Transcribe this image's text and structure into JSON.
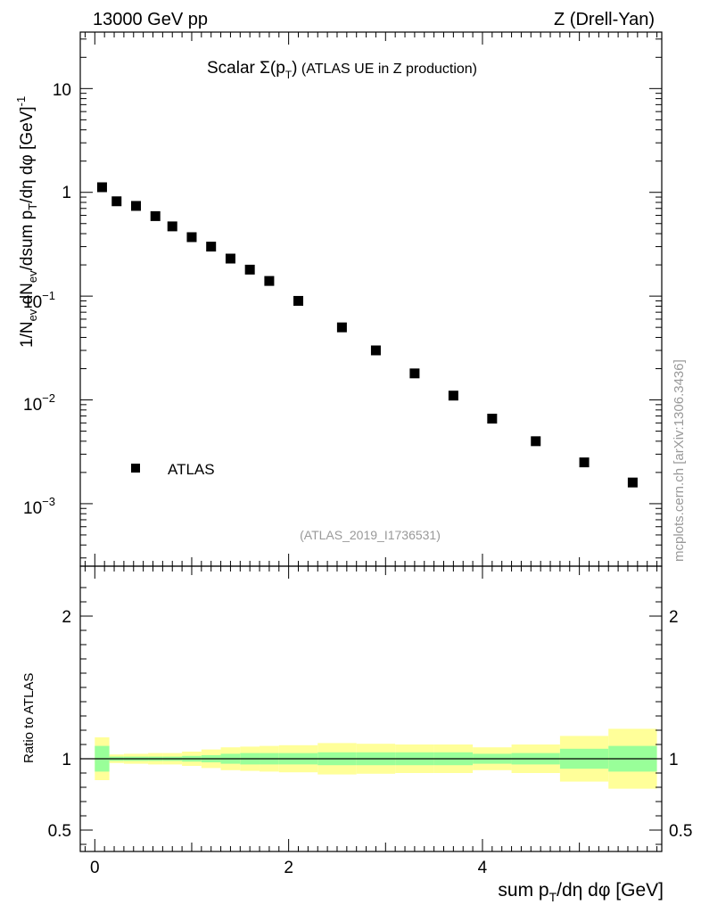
{
  "chart_data": [
    {
      "type": "scatter",
      "panel": "main",
      "header_left": "13000 GeV pp",
      "header_right": "Z (Drell-Yan)",
      "title": "Scalar Σ(p_T) (ATLAS UE in Z production)",
      "title_parts": {
        "lead": "Scalar ",
        "sym": "Σ(p",
        "sub": "T",
        "tail": ")",
        "rest": " (ATLAS UE in Z production)"
      },
      "analysis_id": "(ATLAS_2019_I1736531)",
      "side_label": "mcplots.cern.ch [arXiv:1306.3436]",
      "ylabel": "1/N_ev dN_ev/dsum p_T/dη dφ [GeV]^-1",
      "ylabel_parts": {
        "a": "1/N",
        "ev1": "ev",
        "b": " dN",
        "ev2": "ev",
        "c": "/dsum p",
        "T": "T",
        "d": "/dη dφ  [GeV]",
        "sup": "-1"
      },
      "yscale": "log",
      "ylim": [
        0.00025,
        35
      ],
      "xlim": [
        -0.15,
        5.85
      ],
      "ytick_labels": {
        "p10": "10",
        "p1": "1",
        "pm1": "10",
        "pm1_exp": "−1",
        "pm2": "10",
        "pm2_exp": "−2",
        "pm3": "10",
        "pm3_exp": "−3"
      },
      "legend": [
        {
          "label": "ATLAS",
          "marker": "square",
          "color": "#000000",
          "position": "lower-left"
        }
      ],
      "series": [
        {
          "name": "ATLAS",
          "x": [
            0.075,
            0.225,
            0.425,
            0.625,
            0.8,
            1.0,
            1.2,
            1.4,
            1.6,
            1.8,
            2.1,
            2.55,
            2.9,
            3.3,
            3.7,
            4.1,
            4.55,
            5.05,
            5.55
          ],
          "y": [
            1.12,
            0.82,
            0.74,
            0.59,
            0.47,
            0.37,
            0.3,
            0.23,
            0.18,
            0.14,
            0.09,
            0.05,
            0.03,
            0.018,
            0.011,
            0.0066,
            0.004,
            0.0025,
            0.0016
          ]
        }
      ]
    },
    {
      "type": "area",
      "panel": "ratio",
      "ylabel": "Ratio to ATLAS",
      "xlabel": "sum p_T/dη dφ [GeV]",
      "xlabel_parts": {
        "a": "sum p",
        "T": "T",
        "b": "/dη dφ [GeV]"
      },
      "xlim": [
        -0.15,
        5.85
      ],
      "ylim": [
        0.35,
        2.35
      ],
      "reference_line": 1,
      "xtick_labels": [
        "0",
        "2",
        "4"
      ],
      "ytick_labels": [
        "2",
        "1",
        "0.5"
      ],
      "band_colors": {
        "inner": "#99ff99",
        "outer": "#ffff99"
      },
      "bins": [
        {
          "lo": 0.0,
          "hi": 0.15,
          "inner": [
            0.91,
            1.09
          ],
          "outer": [
            0.85,
            1.15
          ]
        },
        {
          "lo": 0.15,
          "hi": 0.3,
          "inner": [
            0.985,
            1.015
          ],
          "outer": [
            0.97,
            1.03
          ]
        },
        {
          "lo": 0.3,
          "hi": 0.55,
          "inner": [
            0.985,
            1.015
          ],
          "outer": [
            0.965,
            1.035
          ]
        },
        {
          "lo": 0.55,
          "hi": 0.7,
          "inner": [
            0.985,
            1.015
          ],
          "outer": [
            0.96,
            1.04
          ]
        },
        {
          "lo": 0.7,
          "hi": 0.9,
          "inner": [
            0.985,
            1.015
          ],
          "outer": [
            0.96,
            1.04
          ]
        },
        {
          "lo": 0.9,
          "hi": 1.1,
          "inner": [
            0.98,
            1.02
          ],
          "outer": [
            0.95,
            1.05
          ]
        },
        {
          "lo": 1.1,
          "hi": 1.3,
          "inner": [
            0.975,
            1.025
          ],
          "outer": [
            0.935,
            1.065
          ]
        },
        {
          "lo": 1.3,
          "hi": 1.5,
          "inner": [
            0.965,
            1.035
          ],
          "outer": [
            0.92,
            1.08
          ]
        },
        {
          "lo": 1.5,
          "hi": 1.7,
          "inner": [
            0.96,
            1.04
          ],
          "outer": [
            0.915,
            1.085
          ]
        },
        {
          "lo": 1.7,
          "hi": 1.9,
          "inner": [
            0.96,
            1.04
          ],
          "outer": [
            0.91,
            1.09
          ]
        },
        {
          "lo": 1.9,
          "hi": 2.3,
          "inner": [
            0.96,
            1.04
          ],
          "outer": [
            0.905,
            1.095
          ]
        },
        {
          "lo": 2.3,
          "hi": 2.7,
          "inner": [
            0.955,
            1.045
          ],
          "outer": [
            0.89,
            1.11
          ]
        },
        {
          "lo": 2.7,
          "hi": 3.1,
          "inner": [
            0.955,
            1.045
          ],
          "outer": [
            0.895,
            1.105
          ]
        },
        {
          "lo": 3.1,
          "hi": 3.5,
          "inner": [
            0.955,
            1.045
          ],
          "outer": [
            0.9,
            1.1
          ]
        },
        {
          "lo": 3.5,
          "hi": 3.9,
          "inner": [
            0.955,
            1.045
          ],
          "outer": [
            0.9,
            1.1
          ]
        },
        {
          "lo": 3.9,
          "hi": 4.3,
          "inner": [
            0.965,
            1.035
          ],
          "outer": [
            0.92,
            1.08
          ]
        },
        {
          "lo": 4.3,
          "hi": 4.8,
          "inner": [
            0.96,
            1.04
          ],
          "outer": [
            0.9,
            1.1
          ]
        },
        {
          "lo": 4.8,
          "hi": 5.3,
          "inner": [
            0.93,
            1.07
          ],
          "outer": [
            0.84,
            1.16
          ]
        },
        {
          "lo": 5.3,
          "hi": 5.8,
          "inner": [
            0.91,
            1.09
          ],
          "outer": [
            0.79,
            1.21
          ]
        }
      ]
    }
  ]
}
